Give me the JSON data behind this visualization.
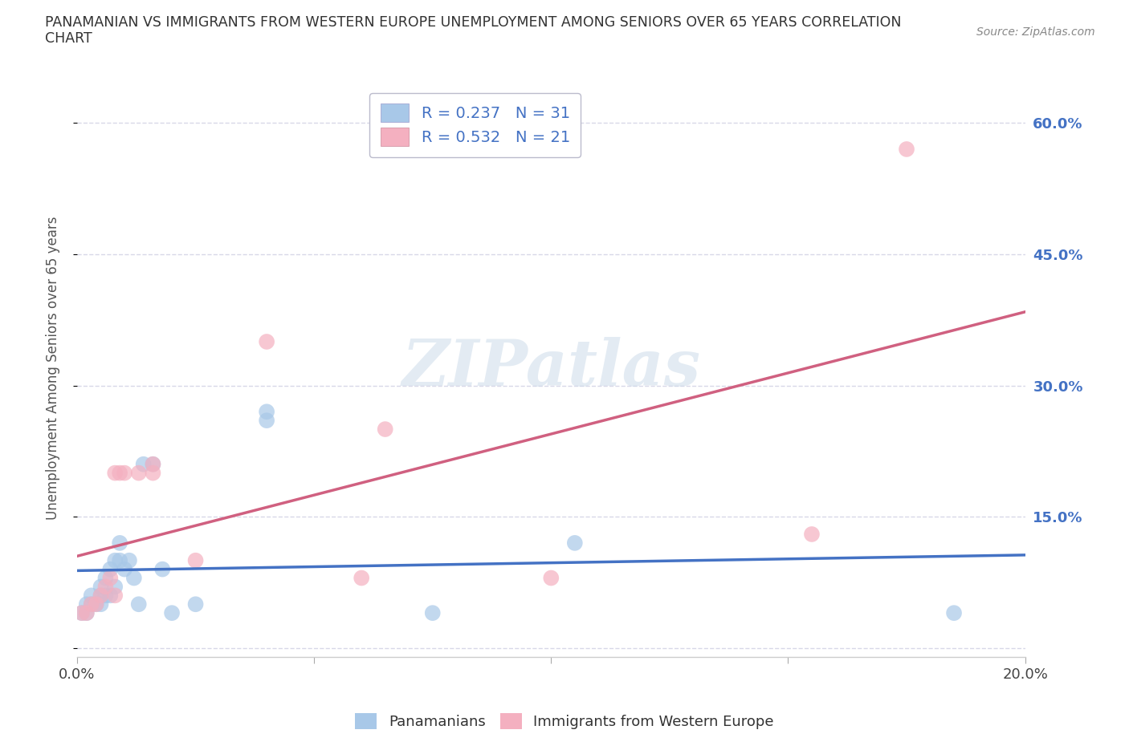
{
  "title": "PANAMANIAN VS IMMIGRANTS FROM WESTERN EUROPE UNEMPLOYMENT AMONG SENIORS OVER 65 YEARS CORRELATION\nCHART",
  "source": "Source: ZipAtlas.com",
  "ylabel_label": "Unemployment Among Seniors over 65 years",
  "xlim": [
    0.0,
    0.2
  ],
  "ylim": [
    -0.01,
    0.65
  ],
  "ytick_positions": [
    0.0,
    0.15,
    0.3,
    0.45,
    0.6
  ],
  "ytick_labels": [
    "",
    "15.0%",
    "30.0%",
    "45.0%",
    "60.0%"
  ],
  "xtick_positions": [
    0.0,
    0.05,
    0.1,
    0.15,
    0.2
  ],
  "xtick_labels": [
    "0.0%",
    "",
    "",
    "",
    "20.0%"
  ],
  "panamanian_color": "#a8c8e8",
  "western_europe_color": "#f4b0c0",
  "panamanian_line_color": "#4472c4",
  "western_europe_line_color": "#d06080",
  "R1": 0.237,
  "N1": 31,
  "R2": 0.532,
  "N2": 21,
  "watermark": "ZIPatlas",
  "panamanian_x": [
    0.001,
    0.002,
    0.002,
    0.003,
    0.003,
    0.004,
    0.005,
    0.005,
    0.005,
    0.006,
    0.006,
    0.007,
    0.007,
    0.008,
    0.008,
    0.009,
    0.009,
    0.01,
    0.011,
    0.012,
    0.013,
    0.014,
    0.016,
    0.018,
    0.02,
    0.025,
    0.04,
    0.04,
    0.075,
    0.105,
    0.185
  ],
  "panamanian_y": [
    0.04,
    0.04,
    0.05,
    0.05,
    0.06,
    0.05,
    0.05,
    0.06,
    0.07,
    0.06,
    0.08,
    0.06,
    0.09,
    0.07,
    0.1,
    0.1,
    0.12,
    0.09,
    0.1,
    0.08,
    0.05,
    0.21,
    0.21,
    0.09,
    0.04,
    0.05,
    0.26,
    0.27,
    0.04,
    0.12,
    0.04
  ],
  "western_europe_x": [
    0.001,
    0.002,
    0.003,
    0.004,
    0.005,
    0.006,
    0.007,
    0.008,
    0.008,
    0.009,
    0.01,
    0.013,
    0.016,
    0.016,
    0.025,
    0.04,
    0.06,
    0.065,
    0.1,
    0.155,
    0.175
  ],
  "western_europe_y": [
    0.04,
    0.04,
    0.05,
    0.05,
    0.06,
    0.07,
    0.08,
    0.06,
    0.2,
    0.2,
    0.2,
    0.2,
    0.21,
    0.2,
    0.1,
    0.35,
    0.08,
    0.25,
    0.08,
    0.13,
    0.57
  ],
  "background_color": "#ffffff",
  "grid_color": "#d8d8e8"
}
